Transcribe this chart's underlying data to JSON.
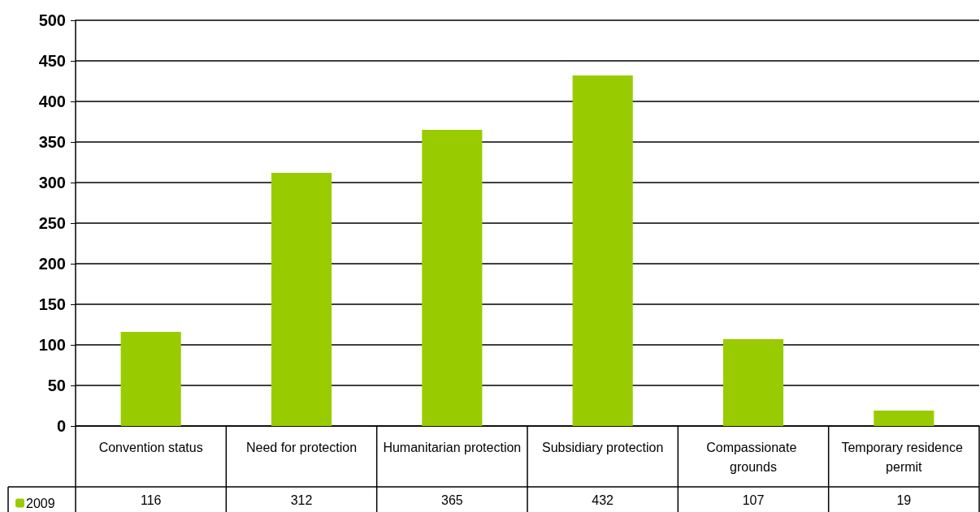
{
  "chart_data": {
    "type": "bar",
    "categories": [
      "Convention status",
      "Need for protection",
      "Humanitarian protection",
      "Subsidiary protection",
      "Compassionate grounds",
      "Temporary residence permit"
    ],
    "series": [
      {
        "name": "2009",
        "color": "#99cc00",
        "values": [
          116,
          312,
          365,
          432,
          107,
          19
        ]
      }
    ],
    "ylim": [
      0,
      500
    ],
    "yticks": [
      0,
      50,
      100,
      150,
      200,
      250,
      300,
      350,
      400,
      450,
      500
    ],
    "grid": "y",
    "legend": "bottom left",
    "data_labels": true
  }
}
